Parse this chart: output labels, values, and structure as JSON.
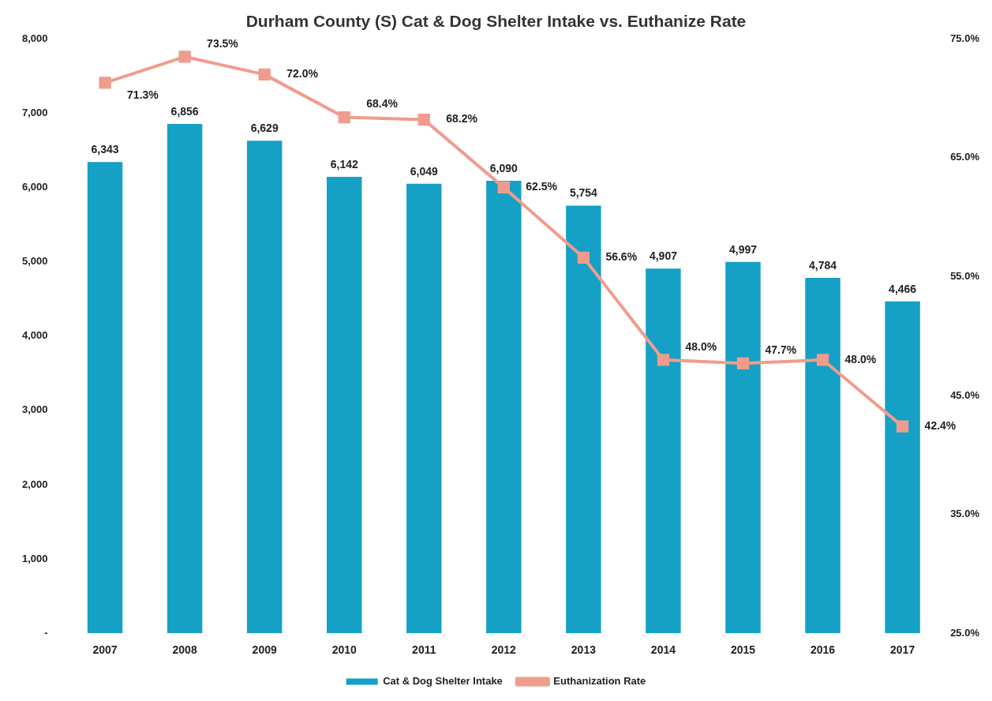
{
  "chart_data": {
    "type": "bar",
    "title": "Durham County (S) Cat & Dog Shelter Intake vs. Euthanize Rate",
    "categories": [
      "2007",
      "2008",
      "2009",
      "2010",
      "2011",
      "2012",
      "2013",
      "2014",
      "2015",
      "2016",
      "2017"
    ],
    "series": [
      {
        "name": "Cat & Dog Shelter Intake",
        "color": "#15a0c6",
        "values": [
          6343,
          6856,
          6629,
          6142,
          6049,
          6090,
          5754,
          4907,
          4997,
          4784,
          4466
        ],
        "value_labels": [
          "6,343",
          "6,856",
          "6,629",
          "6,142",
          "6,049",
          "6,090",
          "5,754",
          "4,907",
          "4,997",
          "4,784",
          "4,466"
        ]
      },
      {
        "name": "Euthanization Rate",
        "type": "line",
        "axis": "y2",
        "color": "#f09c8c",
        "values": [
          71.3,
          73.5,
          72.0,
          68.4,
          68.2,
          62.5,
          56.6,
          48.0,
          47.7,
          48.0,
          42.4
        ],
        "value_labels": [
          "71.3%",
          "73.5%",
          "72.0%",
          "68.4%",
          "68.2%",
          "62.5%",
          "56.6%",
          "48.0%",
          "47.7%",
          "48.0%",
          "42.4%"
        ]
      }
    ],
    "ylim": [
      0,
      8000
    ],
    "yticks": [
      {
        "value": 0,
        "label": "-"
      },
      {
        "value": 1000,
        "label": "1,000"
      },
      {
        "value": 2000,
        "label": "2,000"
      },
      {
        "value": 3000,
        "label": "3,000"
      },
      {
        "value": 4000,
        "label": "4,000"
      },
      {
        "value": 5000,
        "label": "5,000"
      },
      {
        "value": 6000,
        "label": "6,000"
      },
      {
        "value": 7000,
        "label": "7,000"
      },
      {
        "value": 8000,
        "label": "8,000"
      }
    ],
    "y2lim": [
      25,
      75
    ],
    "y2ticks": [
      {
        "value": 25,
        "label": "25.0%"
      },
      {
        "value": 35,
        "label": "35.0%"
      },
      {
        "value": 45,
        "label": "45.0%"
      },
      {
        "value": 55,
        "label": "55.0%"
      },
      {
        "value": 65,
        "label": "65.0%"
      },
      {
        "value": 75,
        "label": "75.0%"
      }
    ],
    "legend": "bottom",
    "marker": "square"
  }
}
